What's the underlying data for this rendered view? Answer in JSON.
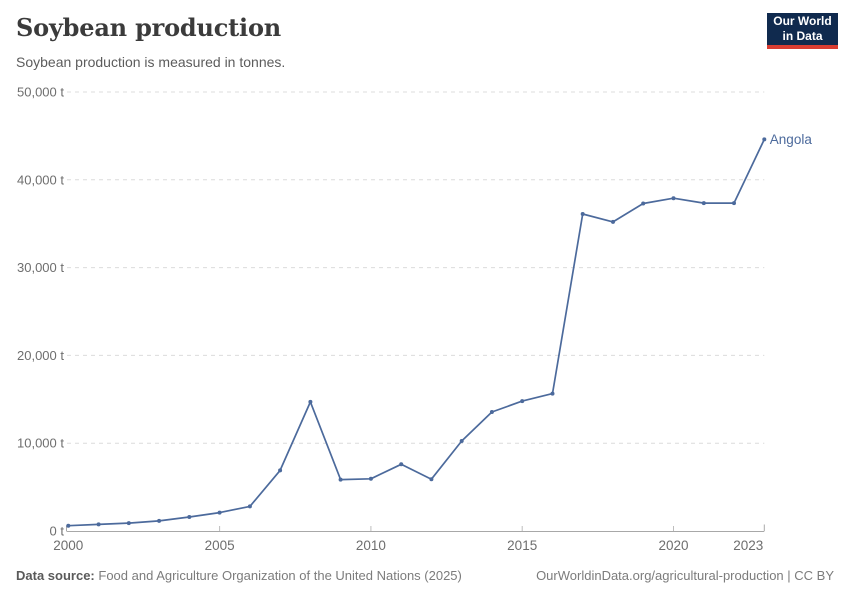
{
  "header": {
    "title": "Soybean production",
    "subtitle": "Soybean production is measured in tonnes.",
    "logo": {
      "line1": "Our World",
      "line2": "in Data",
      "bg_color": "#102a4e",
      "accent_color": "#d93d32"
    }
  },
  "chart_data": {
    "type": "line",
    "title": "Soybean production",
    "subtitle": "Soybean production is measured in tonnes.",
    "unit": "tonnes",
    "xlim": [
      2000,
      2023
    ],
    "ylim": [
      0,
      50000
    ],
    "grid": "horizontal dashed",
    "legend_position": "end-of-line label",
    "x": [
      2000,
      2001,
      2002,
      2003,
      2004,
      2005,
      2006,
      2007,
      2008,
      2009,
      2010,
      2011,
      2012,
      2013,
      2014,
      2015,
      2016,
      2017,
      2018,
      2019,
      2020,
      2021,
      2022,
      2023
    ],
    "series": [
      {
        "name": "Angola",
        "color": "#4c6a9c",
        "values": [
          600,
          750,
          900,
          1150,
          1600,
          2100,
          2800,
          6900,
          14700,
          5850,
          5950,
          7600,
          5900,
          10250,
          13550,
          14800,
          15650,
          36100,
          35200,
          37300,
          37900,
          37350,
          37350,
          44600
        ]
      }
    ],
    "x_ticks": [
      "2000",
      "2005",
      "2010",
      "2015",
      "2020",
      "2023"
    ],
    "x_tick_years": [
      2000,
      2005,
      2010,
      2015,
      2020,
      2023
    ],
    "y_ticks": [
      0,
      10000,
      20000,
      30000,
      40000,
      50000
    ],
    "y_tick_labels": [
      "0 t",
      "10,000 t",
      "20,000 t",
      "30,000 t",
      "40,000 t",
      "50,000 t"
    ]
  },
  "colors": {
    "line": "#4c6a9c",
    "gridline": "#dcdcdc",
    "axis": "#a8a8a8",
    "tick_label": "#6e6e6e",
    "title": "#3b3b3b",
    "subtitle": "#5c5c5c"
  },
  "footer": {
    "source_label": "Data source:",
    "source_text": "Food and Agriculture Organization of the United Nations (2025)",
    "link_text": "OurWorldinData.org/agricultural-production | CC BY"
  }
}
